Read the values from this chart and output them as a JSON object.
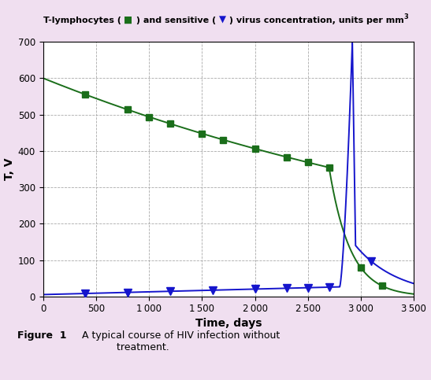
{
  "ylabel": "T, V",
  "xlabel": "Time, days",
  "xlim": [
    0,
    3500
  ],
  "ylim": [
    0,
    700
  ],
  "xticks": [
    0,
    500,
    1000,
    1500,
    2000,
    2500,
    3000,
    3500
  ],
  "yticks": [
    0,
    100,
    200,
    300,
    400,
    500,
    600,
    700
  ],
  "T_color": "#1a6e1a",
  "V_color": "#1515cc",
  "fig_bg": "#f0dff0",
  "ax_bg": "#ffffff",
  "T_marker_x": [
    400,
    800,
    1000,
    1200,
    1500,
    1700,
    2000,
    2300,
    2500,
    2700,
    3000,
    3200
  ],
  "V_marker_x": [
    400,
    800,
    1200,
    1600,
    2000,
    2300,
    2500,
    2700,
    3100
  ],
  "caption": "Figure  1   A typical course of HIV infection without\ntreatment."
}
